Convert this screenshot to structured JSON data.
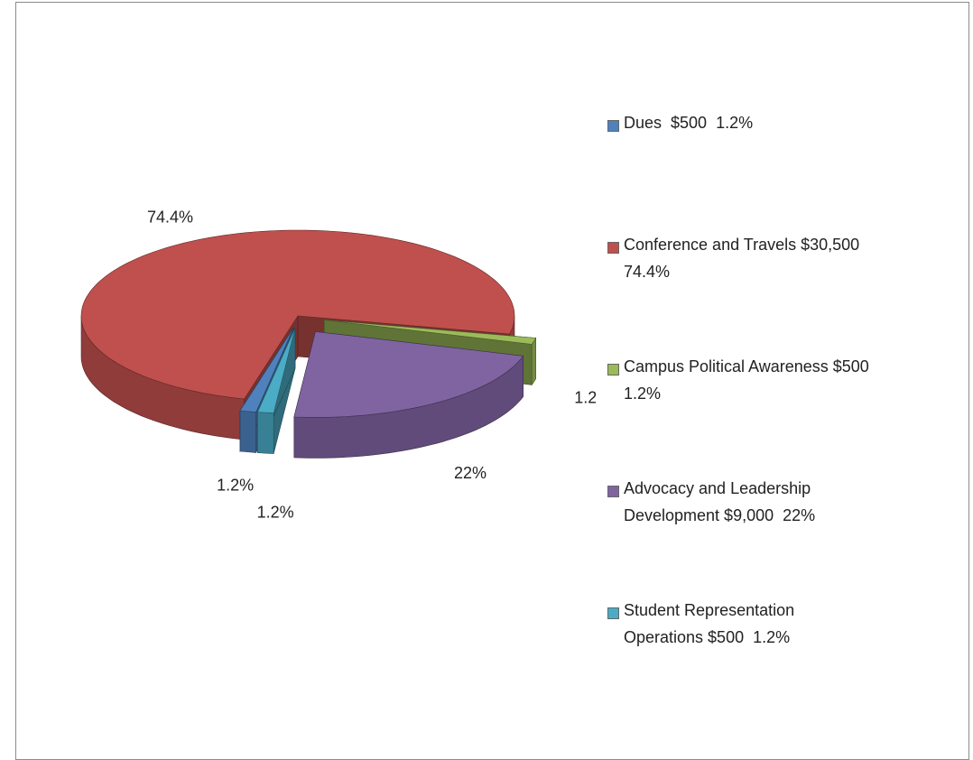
{
  "chart_data": {
    "type": "pie3d",
    "categories": [
      "Dues  $500  1.2%",
      "Conference and Travels $30,500\n74.4%",
      "Campus Political Awareness $500\n1.2%",
      "Advocacy and Leadership\nDevelopment $9,000  22%",
      "Student Representation\nOperations $500  1.2%"
    ],
    "values": [
      1.2,
      74.4,
      1.2,
      22,
      1.2
    ],
    "value_labels": [
      "1.2%",
      "74.4%",
      "1.2%",
      "22%",
      "1.2%"
    ],
    "colors": [
      "#4f81bd",
      "#c0504d",
      "#9bbb59",
      "#8064a2",
      "#4bacc6"
    ],
    "legend": "right"
  }
}
